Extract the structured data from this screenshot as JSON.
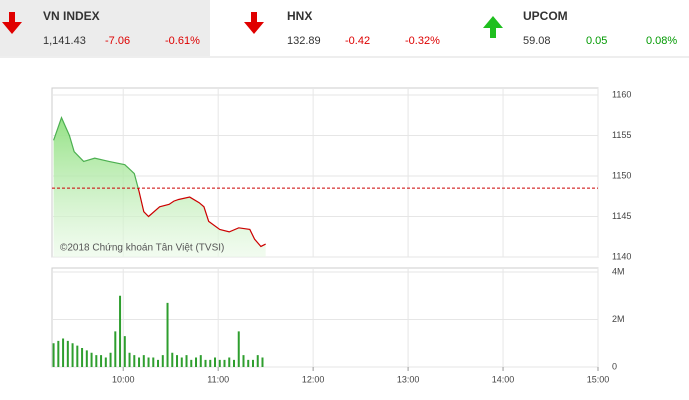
{
  "indices": [
    {
      "name": "VN INDEX",
      "value": "1,141.43",
      "change": "-7.06",
      "percent": "-0.61%"
    },
    {
      "name": "HNX",
      "value": "132.89",
      "change": "-0.42",
      "percent": "-0.32%"
    },
    {
      "name": "UPCOM",
      "value": "59.08",
      "change": "0.05",
      "percent": "0.08%"
    }
  ],
  "chart_data": [
    {
      "type": "area",
      "annotation": "©2018 Chứng khoán Tân Việt (TVSI)",
      "x": [
        556,
        561,
        566,
        569,
        575,
        582,
        591,
        601,
        607,
        610,
        613,
        616,
        623,
        629,
        632,
        635,
        642,
        648,
        651,
        654,
        661,
        667,
        673,
        680,
        683,
        687,
        690
      ],
      "values": [
        1154.4,
        1157.2,
        1155,
        1153,
        1151.8,
        1152.2,
        1151.8,
        1151.4,
        1150.3,
        1148.1,
        1145.6,
        1145,
        1146.2,
        1146.5,
        1146.9,
        1147.1,
        1147.4,
        1146.7,
        1146.2,
        1144.4,
        1143.4,
        1143.1,
        1143.6,
        1143.4,
        1142.2,
        1141.3,
        1141.6
      ],
      "reference": 1148.5,
      "color": "#cc0000",
      "up_color": "#4caf50",
      "fill_color": "#9be58f",
      "xlim": [
        555,
        900
      ],
      "ylim": [
        1140,
        1160
      ],
      "yticks": [
        1140,
        1145,
        1150,
        1155,
        1160
      ],
      "xticks": [
        {
          "value": 600,
          "label": "10:00"
        },
        {
          "value": 660,
          "label": "11:00"
        },
        {
          "value": 720,
          "label": "12:00"
        },
        {
          "value": 780,
          "label": "13:00"
        },
        {
          "value": 840,
          "label": "14:00"
        },
        {
          "value": 900,
          "label": "15:00"
        }
      ],
      "grid": true
    },
    {
      "type": "bar",
      "color": "#2e9e2e",
      "x": [
        556,
        559,
        562,
        565,
        568,
        571,
        574,
        577,
        580,
        583,
        586,
        589,
        592,
        595,
        598,
        601,
        604,
        607,
        610,
        613,
        616,
        619,
        622,
        625,
        628,
        631,
        634,
        637,
        640,
        643,
        646,
        649,
        652,
        655,
        658,
        661,
        664,
        667,
        670,
        673,
        676,
        679,
        682,
        685,
        688
      ],
      "values": [
        1000000,
        1100000,
        1200000,
        1100000,
        1000000,
        900000,
        800000,
        700000,
        600000,
        500000,
        500000,
        400000,
        600000,
        1500000,
        3000000,
        1300000,
        600000,
        500000,
        400000,
        500000,
        400000,
        400000,
        300000,
        500000,
        2700000,
        600000,
        500000,
        400000,
        500000,
        300000,
        400000,
        500000,
        300000,
        300000,
        400000,
        300000,
        300000,
        400000,
        300000,
        1500000,
        500000,
        300000,
        300000,
        500000,
        400000
      ],
      "xlim": [
        555,
        900
      ],
      "ylim": [
        0,
        4000000
      ],
      "yticks": [
        0,
        {
          "value": 2000000,
          "label": "2M"
        },
        {
          "value": 4000000,
          "label": "4M"
        }
      ],
      "xticks": [
        {
          "value": 600,
          "label": "10:00"
        },
        {
          "value": 660,
          "label": "11:00"
        },
        {
          "value": 720,
          "label": "12:00"
        },
        {
          "value": 780,
          "label": "13:00"
        },
        {
          "value": 840,
          "label": "14:00"
        },
        {
          "value": 900,
          "label": "15:00"
        }
      ],
      "grid": true
    }
  ]
}
